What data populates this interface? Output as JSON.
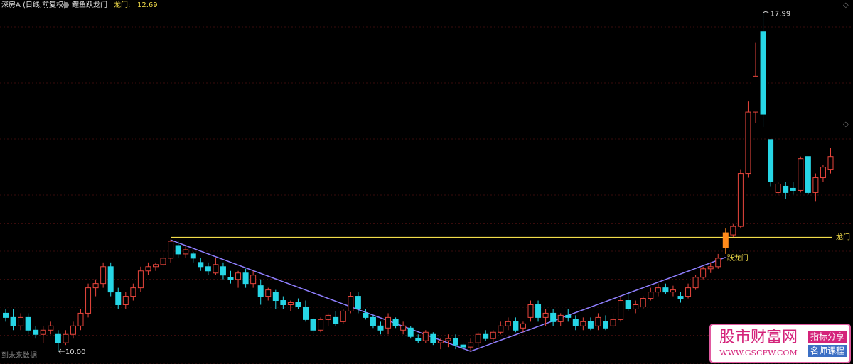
{
  "header": {
    "symbol": "深房A (日线,前复权)",
    "indicator": "鲤鱼跃龙门",
    "gate_label": "龙门:"
  },
  "chart_data": {
    "type": "candlestick",
    "ylim": [
      9.7,
      18.3
    ],
    "up_color": "#e8453c",
    "down_color": "#27d6e6",
    "signal_color": "#ff8a1a",
    "candles": [
      [
        10.9,
        11.0,
        10.7,
        10.8
      ],
      [
        10.8,
        11.0,
        10.5,
        10.6
      ],
      [
        10.6,
        10.9,
        10.5,
        10.8
      ],
      [
        10.8,
        10.9,
        10.4,
        10.5
      ],
      [
        10.5,
        10.6,
        10.3,
        10.4
      ],
      [
        10.4,
        10.6,
        10.2,
        10.5
      ],
      [
        10.5,
        10.7,
        10.4,
        10.6
      ],
      [
        10.4,
        10.5,
        10.0,
        10.2
      ],
      [
        10.2,
        10.5,
        10.15,
        10.4
      ],
      [
        10.4,
        10.7,
        10.3,
        10.6
      ],
      [
        10.6,
        11.0,
        10.5,
        10.9
      ],
      [
        10.9,
        11.6,
        10.8,
        11.5
      ],
      [
        11.5,
        11.7,
        11.3,
        11.6
      ],
      [
        11.6,
        12.1,
        11.5,
        12.0
      ],
      [
        12.0,
        12.1,
        11.3,
        11.4
      ],
      [
        11.4,
        11.5,
        11.0,
        11.1
      ],
      [
        11.1,
        11.4,
        11.0,
        11.3
      ],
      [
        11.3,
        11.6,
        11.2,
        11.5
      ],
      [
        11.5,
        12.0,
        11.4,
        11.9
      ],
      [
        11.9,
        12.1,
        11.8,
        12.0
      ],
      [
        12.0,
        12.1,
        11.9,
        12.05
      ],
      [
        12.05,
        12.3,
        12.0,
        12.2
      ],
      [
        12.2,
        12.64,
        12.1,
        12.6
      ],
      [
        12.5,
        12.6,
        12.2,
        12.3
      ],
      [
        12.3,
        12.5,
        12.2,
        12.4
      ],
      [
        12.3,
        12.35,
        12.1,
        12.2
      ],
      [
        12.1,
        12.2,
        11.9,
        12.0
      ],
      [
        12.0,
        12.1,
        11.8,
        11.9
      ],
      [
        11.85,
        12.2,
        11.8,
        12.05
      ],
      [
        12.0,
        12.1,
        11.7,
        11.8
      ],
      [
        11.75,
        11.9,
        11.6,
        11.7
      ],
      [
        11.7,
        11.9,
        11.5,
        11.85
      ],
      [
        11.85,
        11.95,
        11.5,
        11.6
      ],
      [
        11.6,
        11.9,
        11.5,
        11.8
      ],
      [
        11.55,
        11.7,
        11.1,
        11.3
      ],
      [
        11.3,
        11.5,
        11.2,
        11.45
      ],
      [
        11.4,
        11.45,
        11.0,
        11.2
      ],
      [
        11.2,
        11.3,
        11.0,
        11.1
      ],
      [
        11.1,
        11.2,
        10.95,
        11.15
      ],
      [
        11.15,
        11.25,
        11.0,
        11.05
      ],
      [
        11.05,
        11.2,
        10.7,
        10.75
      ],
      [
        10.75,
        10.8,
        10.4,
        10.5
      ],
      [
        10.5,
        10.8,
        10.45,
        10.75
      ],
      [
        10.75,
        10.9,
        10.6,
        10.85
      ],
      [
        10.8,
        10.95,
        10.6,
        10.65
      ],
      [
        10.7,
        11.0,
        10.65,
        10.95
      ],
      [
        10.95,
        11.4,
        10.9,
        11.3
      ],
      [
        11.3,
        11.4,
        10.9,
        11.0
      ],
      [
        10.9,
        11.0,
        10.75,
        10.8
      ],
      [
        10.8,
        10.85,
        10.55,
        10.6
      ],
      [
        10.6,
        10.7,
        10.4,
        10.5
      ],
      [
        10.55,
        10.9,
        10.4,
        10.8
      ],
      [
        10.75,
        10.8,
        10.55,
        10.6
      ],
      [
        10.5,
        10.7,
        10.4,
        10.6
      ],
      [
        10.55,
        10.6,
        10.3,
        10.35
      ],
      [
        10.3,
        10.4,
        10.2,
        10.25
      ],
      [
        10.25,
        10.5,
        10.2,
        10.45
      ],
      [
        10.4,
        10.45,
        10.15,
        10.2
      ],
      [
        10.2,
        10.3,
        10.05,
        10.25
      ],
      [
        10.25,
        10.4,
        10.1,
        10.3
      ],
      [
        10.3,
        10.4,
        10.05,
        10.15
      ],
      [
        10.15,
        10.2,
        10.02,
        10.1
      ],
      [
        10.1,
        10.3,
        10.0,
        10.2
      ],
      [
        10.2,
        10.45,
        10.05,
        10.4
      ],
      [
        10.4,
        10.5,
        10.25,
        10.3
      ],
      [
        10.3,
        10.5,
        10.2,
        10.45
      ],
      [
        10.45,
        10.7,
        10.4,
        10.6
      ],
      [
        10.6,
        10.8,
        10.5,
        10.7
      ],
      [
        10.7,
        10.8,
        10.45,
        10.5
      ],
      [
        10.55,
        10.7,
        10.45,
        10.65
      ],
      [
        10.8,
        11.2,
        10.7,
        11.1
      ],
      [
        11.1,
        11.2,
        10.7,
        10.8
      ],
      [
        10.8,
        11.0,
        10.6,
        10.9
      ],
      [
        10.9,
        11.0,
        10.6,
        10.7
      ],
      [
        10.7,
        10.9,
        10.6,
        10.85
      ],
      [
        10.85,
        11.0,
        10.7,
        10.8
      ],
      [
        10.75,
        10.85,
        10.5,
        10.6
      ],
      [
        10.6,
        10.8,
        10.5,
        10.7
      ],
      [
        10.7,
        10.8,
        10.5,
        10.55
      ],
      [
        10.6,
        10.9,
        10.5,
        10.8
      ],
      [
        10.7,
        10.85,
        10.5,
        10.55
      ],
      [
        10.6,
        10.9,
        10.55,
        10.75
      ],
      [
        10.75,
        11.3,
        10.7,
        11.2
      ],
      [
        11.2,
        11.4,
        10.95,
        11.0
      ],
      [
        11.0,
        11.2,
        10.9,
        11.1
      ],
      [
        11.05,
        11.3,
        11.0,
        11.25
      ],
      [
        11.25,
        11.5,
        11.2,
        11.4
      ],
      [
        11.4,
        11.6,
        11.3,
        11.5
      ],
      [
        11.5,
        11.6,
        11.35,
        11.4
      ],
      [
        11.4,
        11.55,
        11.3,
        11.45
      ],
      [
        11.3,
        11.4,
        11.15,
        11.25
      ],
      [
        11.3,
        11.6,
        11.25,
        11.5
      ],
      [
        11.5,
        11.8,
        11.45,
        11.75
      ],
      [
        11.75,
        12.0,
        11.7,
        11.95
      ],
      [
        11.95,
        12.1,
        11.85,
        12.0
      ],
      [
        12.0,
        12.3,
        11.95,
        12.2
      ],
      [
        12.45,
        12.9,
        12.3,
        12.8
      ],
      [
        12.75,
        13.0,
        12.7,
        12.95
      ],
      [
        12.95,
        14.3,
        12.9,
        14.2
      ],
      [
        14.2,
        15.9,
        14.1,
        15.65
      ],
      [
        15.65,
        17.3,
        15.4,
        16.5
      ],
      [
        17.55,
        17.99,
        15.3,
        15.6
      ],
      [
        15.0,
        15.0,
        13.9,
        14.0
      ],
      [
        13.75,
        14.0,
        13.7,
        13.95
      ],
      [
        13.9,
        14.0,
        13.6,
        13.75
      ],
      [
        13.85,
        14.0,
        13.7,
        13.8
      ],
      [
        13.8,
        14.6,
        13.75,
        14.55
      ],
      [
        14.6,
        14.6,
        13.7,
        13.75
      ],
      [
        13.75,
        14.2,
        13.55,
        14.1
      ],
      [
        14.1,
        14.4,
        14.0,
        14.35
      ],
      [
        14.3,
        14.8,
        14.2,
        14.6
      ]
    ],
    "signal_index": 96,
    "signal_label": "跃龙门",
    "dragon_gate": {
      "name": "龙门",
      "value": 12.69,
      "start": 22,
      "color": "#f2dc4a"
    },
    "v_line": {
      "x": [
        22,
        62,
        96
      ],
      "values": [
        12.63,
        10.0,
        12.22
      ],
      "color": "#8f7fff"
    },
    "high_label": {
      "index": 101
    },
    "low_label": {
      "index": 7,
      "value": 10,
      "label": "10.00"
    }
  },
  "footer": {
    "note": "到未来数据"
  },
  "watermark": {
    "title": "股市财富网",
    "url": "WWW.GSCFW.COM",
    "tag1": "指标分享",
    "tag2": "名师课程"
  }
}
